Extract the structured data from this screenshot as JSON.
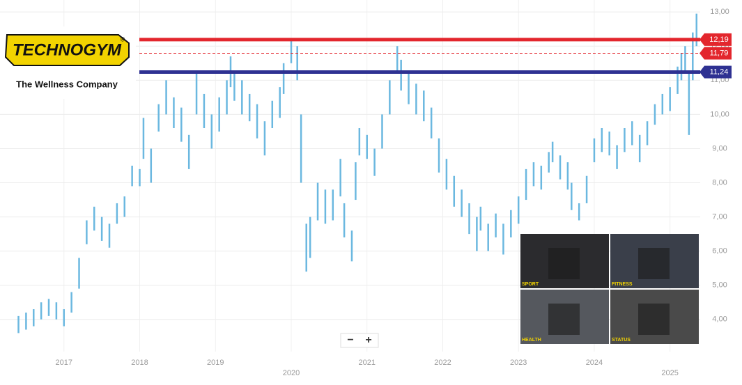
{
  "logo": {
    "brand": "TECHNOGYM",
    "mark": "®",
    "tagline": "The Wellness Company"
  },
  "thumbnails": [
    "SPORT",
    "FITNESS",
    "HEALTH",
    "STATUS"
  ],
  "zoom": {
    "minus": "−",
    "plus": "+"
  },
  "chart_data": {
    "type": "range",
    "color": "#6bb8e0",
    "grid": true,
    "xlim": [
      2016.34,
      2025.38
    ],
    "ylim": [
      3.16,
      13.35
    ],
    "xticks": [
      2017,
      2018,
      2019,
      2020,
      2021,
      2022,
      2023,
      2024,
      2025
    ],
    "yticks": [
      {
        "value": 4,
        "label": "4,00"
      },
      {
        "value": 5,
        "label": "5,00"
      },
      {
        "value": 6,
        "label": "6,00"
      },
      {
        "value": 7,
        "label": "7,00"
      },
      {
        "value": 8,
        "label": "8,00"
      },
      {
        "value": 9,
        "label": "9,00"
      },
      {
        "value": 10,
        "label": "10,00"
      },
      {
        "value": 11,
        "label": "11,00"
      },
      {
        "value": 12,
        "label": "12,00"
      },
      {
        "value": 13,
        "label": "13,00"
      }
    ],
    "levels": [
      {
        "value": 12.19,
        "label": "12,19",
        "color": "#e3262d",
        "style": "solid"
      },
      {
        "value": 11.79,
        "label": "11,79",
        "color": "#e3262d",
        "style": "dashed"
      },
      {
        "value": 11.24,
        "label": "11,24",
        "color": "#2e3192",
        "style": "solid"
      }
    ],
    "x": [
      2016.4,
      2016.5,
      2016.6,
      2016.7,
      2016.8,
      2016.9,
      2017.0,
      2017.1,
      2017.2,
      2017.3,
      2017.4,
      2017.5,
      2017.6,
      2017.7,
      2017.8,
      2017.9,
      2018.0,
      2018.05,
      2018.15,
      2018.25,
      2018.35,
      2018.45,
      2018.55,
      2018.65,
      2018.75,
      2018.85,
      2018.95,
      2019.05,
      2019.15,
      2019.2,
      2019.25,
      2019.35,
      2019.45,
      2019.55,
      2019.65,
      2019.75,
      2019.85,
      2019.9,
      2020.0,
      2020.08,
      2020.13,
      2020.2,
      2020.25,
      2020.35,
      2020.45,
      2020.55,
      2020.65,
      2020.7,
      2020.8,
      2020.85,
      2020.9,
      2021.0,
      2021.1,
      2021.2,
      2021.3,
      2021.4,
      2021.45,
      2021.55,
      2021.65,
      2021.75,
      2021.85,
      2021.95,
      2022.05,
      2022.15,
      2022.25,
      2022.35,
      2022.45,
      2022.5,
      2022.6,
      2022.7,
      2022.8,
      2022.9,
      2023.0,
      2023.1,
      2023.2,
      2023.3,
      2023.4,
      2023.45,
      2023.55,
      2023.65,
      2023.7,
      2023.8,
      2023.9,
      2024.0,
      2024.1,
      2024.2,
      2024.3,
      2024.4,
      2024.5,
      2024.6,
      2024.7,
      2024.8,
      2024.9,
      2025.0,
      2025.1,
      2025.15,
      2025.2,
      2025.25,
      2025.3,
      2025.35
    ],
    "high": [
      4.1,
      4.2,
      4.3,
      4.5,
      4.6,
      4.5,
      4.3,
      4.8,
      5.8,
      6.9,
      7.3,
      7.0,
      6.8,
      7.4,
      7.6,
      8.5,
      8.4,
      9.9,
      9.0,
      10.3,
      11.0,
      10.5,
      10.2,
      9.4,
      11.2,
      10.6,
      10.0,
      10.5,
      11.0,
      11.7,
      11.2,
      11.0,
      10.6,
      10.3,
      9.8,
      10.4,
      10.8,
      11.5,
      12.2,
      12.0,
      10.0,
      6.8,
      7.0,
      8.0,
      7.8,
      7.8,
      8.7,
      7.4,
      6.6,
      8.6,
      9.6,
      9.4,
      9.0,
      10.0,
      11.0,
      12.0,
      11.6,
      11.2,
      10.9,
      10.7,
      10.2,
      9.3,
      8.7,
      8.2,
      7.8,
      7.4,
      7.0,
      7.3,
      6.8,
      7.1,
      6.8,
      7.2,
      7.6,
      8.4,
      8.6,
      8.5,
      8.9,
      9.2,
      8.8,
      8.6,
      8.0,
      7.4,
      8.2,
      9.3,
      9.6,
      9.5,
      9.1,
      9.6,
      9.8,
      9.4,
      9.8,
      10.3,
      10.6,
      10.8,
      11.4,
      11.8,
      12.0,
      11.2,
      12.4,
      12.95
    ],
    "low": [
      3.6,
      3.7,
      3.8,
      4.0,
      4.1,
      4.0,
      3.8,
      4.2,
      4.9,
      6.2,
      6.6,
      6.3,
      6.1,
      6.8,
      7.0,
      7.9,
      7.9,
      8.7,
      8.0,
      9.5,
      10.0,
      9.6,
      9.2,
      8.4,
      10.0,
      9.6,
      9.0,
      9.5,
      10.0,
      10.8,
      10.4,
      10.0,
      9.8,
      9.3,
      8.8,
      9.6,
      9.9,
      10.6,
      11.5,
      11.0,
      8.0,
      5.4,
      5.8,
      6.9,
      6.8,
      6.9,
      7.6,
      6.4,
      5.7,
      7.5,
      8.8,
      8.7,
      8.2,
      9.0,
      10.0,
      11.2,
      10.7,
      10.3,
      10.0,
      9.8,
      9.3,
      8.3,
      7.8,
      7.3,
      7.0,
      6.5,
      6.0,
      6.6,
      6.0,
      6.4,
      5.9,
      6.4,
      6.8,
      7.5,
      7.9,
      7.8,
      8.3,
      8.6,
      8.1,
      7.8,
      7.2,
      6.9,
      7.4,
      8.6,
      8.9,
      8.8,
      8.4,
      8.9,
      9.1,
      8.6,
      9.1,
      9.7,
      10.0,
      10.1,
      10.6,
      11.0,
      11.2,
      9.4,
      11.0,
      12.0
    ]
  }
}
